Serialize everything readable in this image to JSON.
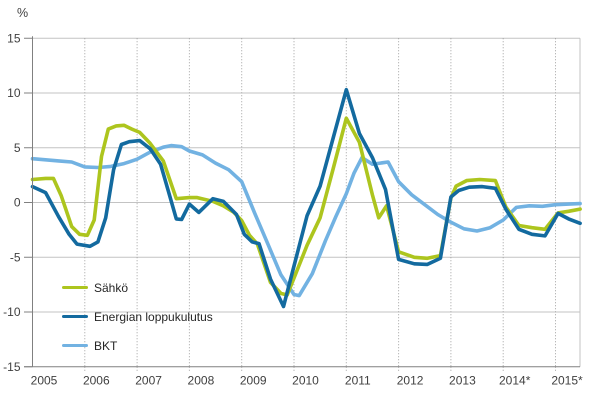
{
  "chart_data": {
    "type": "line",
    "title": "",
    "unit_label": "%",
    "ylabel": "%",
    "xlabel": "",
    "ylim": [
      -15,
      15
    ],
    "x_range": [
      2005,
      2015.47
    ],
    "y_ticks": [
      15,
      10,
      5,
      0,
      -5,
      -10,
      -15
    ],
    "x_tick_years": [
      2005,
      2006,
      2007,
      2008,
      2009,
      2010,
      2011,
      2012,
      2013,
      2014,
      2015
    ],
    "x_tick_labels": [
      "2005",
      "2006",
      "2007",
      "2008",
      "2009",
      "2010",
      "2011",
      "2012",
      "2013",
      "2014*",
      "2015*"
    ],
    "grid": {
      "horizontal": "solid",
      "vertical": "dotted"
    },
    "legend_position": "inside-lower-left",
    "series": [
      {
        "id": "sahko",
        "name": "Sähkö",
        "color": "#adc51e",
        "points": [
          [
            2005.0,
            2.1
          ],
          [
            2005.25,
            2.2
          ],
          [
            2005.4,
            2.2
          ],
          [
            2005.55,
            0.6
          ],
          [
            2005.75,
            -2.2
          ],
          [
            2005.9,
            -2.9
          ],
          [
            2006.05,
            -3.0
          ],
          [
            2006.18,
            -1.6
          ],
          [
            2006.32,
            4.2
          ],
          [
            2006.45,
            6.7
          ],
          [
            2006.6,
            7.0
          ],
          [
            2006.75,
            7.05
          ],
          [
            2006.9,
            6.7
          ],
          [
            2007.05,
            6.4
          ],
          [
            2007.25,
            5.4
          ],
          [
            2007.5,
            3.8
          ],
          [
            2007.75,
            0.35
          ],
          [
            2008.0,
            0.45
          ],
          [
            2008.15,
            0.45
          ],
          [
            2008.45,
            0.1
          ],
          [
            2008.65,
            -0.3
          ],
          [
            2008.85,
            -0.9
          ],
          [
            2009.0,
            -1.65
          ],
          [
            2009.15,
            -3.0
          ],
          [
            2009.3,
            -3.8
          ],
          [
            2009.55,
            -7.3
          ],
          [
            2009.75,
            -8.3
          ],
          [
            2009.87,
            -8.45
          ],
          [
            2010.0,
            -6.9
          ],
          [
            2010.25,
            -3.9
          ],
          [
            2010.5,
            -1.4
          ],
          [
            2010.75,
            3.1
          ],
          [
            2011.0,
            7.7
          ],
          [
            2011.25,
            5.5
          ],
          [
            2011.5,
            0.7
          ],
          [
            2011.62,
            -1.4
          ],
          [
            2011.77,
            -0.3
          ],
          [
            2012.0,
            -4.5
          ],
          [
            2012.3,
            -5.0
          ],
          [
            2012.55,
            -5.1
          ],
          [
            2012.8,
            -4.85
          ],
          [
            2013.0,
            0.4
          ],
          [
            2013.1,
            1.5
          ],
          [
            2013.3,
            2.0
          ],
          [
            2013.55,
            2.1
          ],
          [
            2013.85,
            2.0
          ],
          [
            2014.05,
            -0.4
          ],
          [
            2014.3,
            -2.1
          ],
          [
            2014.55,
            -2.3
          ],
          [
            2014.8,
            -2.45
          ],
          [
            2015.05,
            -0.95
          ],
          [
            2015.25,
            -0.8
          ],
          [
            2015.47,
            -0.6
          ]
        ]
      },
      {
        "id": "energia",
        "name": "Energian loppukulutus",
        "color": "#136a9f",
        "points": [
          [
            2005.0,
            1.45
          ],
          [
            2005.25,
            0.9
          ],
          [
            2005.5,
            -1.3
          ],
          [
            2005.7,
            -2.9
          ],
          [
            2005.85,
            -3.8
          ],
          [
            2006.1,
            -4.0
          ],
          [
            2006.25,
            -3.6
          ],
          [
            2006.4,
            -1.4
          ],
          [
            2006.55,
            3.0
          ],
          [
            2006.7,
            5.3
          ],
          [
            2006.85,
            5.55
          ],
          [
            2007.05,
            5.65
          ],
          [
            2007.25,
            4.9
          ],
          [
            2007.45,
            3.5
          ],
          [
            2007.6,
            1.0
          ],
          [
            2007.75,
            -1.5
          ],
          [
            2007.85,
            -1.55
          ],
          [
            2008.0,
            -0.15
          ],
          [
            2008.18,
            -0.9
          ],
          [
            2008.45,
            0.35
          ],
          [
            2008.65,
            0.1
          ],
          [
            2008.9,
            -1.1
          ],
          [
            2009.05,
            -2.9
          ],
          [
            2009.2,
            -3.6
          ],
          [
            2009.33,
            -3.75
          ],
          [
            2009.55,
            -7.0
          ],
          [
            2009.8,
            -9.5
          ],
          [
            2010.0,
            -5.8
          ],
          [
            2010.25,
            -1.2
          ],
          [
            2010.5,
            1.5
          ],
          [
            2010.75,
            5.9
          ],
          [
            2011.0,
            10.3
          ],
          [
            2011.25,
            6.3
          ],
          [
            2011.5,
            4.1
          ],
          [
            2011.75,
            1.2
          ],
          [
            2012.0,
            -5.2
          ],
          [
            2012.3,
            -5.6
          ],
          [
            2012.55,
            -5.65
          ],
          [
            2012.8,
            -5.1
          ],
          [
            2013.0,
            0.5
          ],
          [
            2013.15,
            1.1
          ],
          [
            2013.35,
            1.4
          ],
          [
            2013.6,
            1.45
          ],
          [
            2013.85,
            1.3
          ],
          [
            2014.05,
            -0.6
          ],
          [
            2014.3,
            -2.45
          ],
          [
            2014.55,
            -2.9
          ],
          [
            2014.8,
            -3.05
          ],
          [
            2015.05,
            -1.0
          ],
          [
            2015.25,
            -1.5
          ],
          [
            2015.47,
            -1.9
          ]
        ]
      },
      {
        "id": "bkt",
        "name": "BKT",
        "color": "#72b2e2",
        "points": [
          [
            2005.0,
            4.0
          ],
          [
            2005.25,
            3.9
          ],
          [
            2005.5,
            3.8
          ],
          [
            2005.75,
            3.7
          ],
          [
            2006.0,
            3.25
          ],
          [
            2006.25,
            3.2
          ],
          [
            2006.5,
            3.3
          ],
          [
            2006.75,
            3.55
          ],
          [
            2007.0,
            3.95
          ],
          [
            2007.25,
            4.6
          ],
          [
            2007.5,
            5.05
          ],
          [
            2007.65,
            5.2
          ],
          [
            2007.85,
            5.1
          ],
          [
            2008.0,
            4.7
          ],
          [
            2008.25,
            4.35
          ],
          [
            2008.5,
            3.6
          ],
          [
            2008.75,
            3.0
          ],
          [
            2009.0,
            1.9
          ],
          [
            2009.25,
            -1.0
          ],
          [
            2009.5,
            -3.8
          ],
          [
            2009.75,
            -6.6
          ],
          [
            2010.0,
            -8.4
          ],
          [
            2010.1,
            -8.5
          ],
          [
            2010.35,
            -6.5
          ],
          [
            2010.6,
            -3.5
          ],
          [
            2010.8,
            -1.3
          ],
          [
            2011.0,
            0.8
          ],
          [
            2011.15,
            2.7
          ],
          [
            2011.3,
            4.1
          ],
          [
            2011.5,
            3.5
          ],
          [
            2011.65,
            3.6
          ],
          [
            2011.8,
            3.7
          ],
          [
            2012.0,
            1.9
          ],
          [
            2012.25,
            0.7
          ],
          [
            2012.5,
            -0.2
          ],
          [
            2012.75,
            -1.1
          ],
          [
            2013.0,
            -1.8
          ],
          [
            2013.25,
            -2.4
          ],
          [
            2013.5,
            -2.6
          ],
          [
            2013.75,
            -2.3
          ],
          [
            2014.0,
            -1.6
          ],
          [
            2014.25,
            -0.45
          ],
          [
            2014.5,
            -0.3
          ],
          [
            2014.75,
            -0.35
          ],
          [
            2015.0,
            -0.2
          ],
          [
            2015.25,
            -0.15
          ],
          [
            2015.47,
            -0.1
          ]
        ]
      }
    ]
  },
  "style": {
    "axis_color": "#808080",
    "grid_color": "#c3c3c3",
    "dotted_grid_color": "#a0a0a0",
    "tick_label_color": "#3f3f3f",
    "plot_right_border_color": "#c3c3c3"
  }
}
